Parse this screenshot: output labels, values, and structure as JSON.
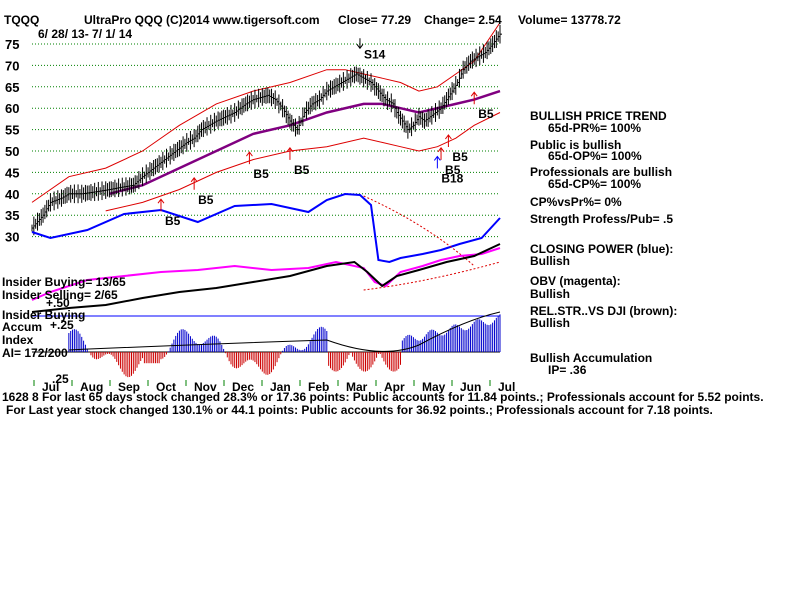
{
  "header": {
    "symbol": "TQQQ",
    "name": "UltraPro QQQ  (C)2014 www.tigersoft.com",
    "close": "Close=  77.29",
    "change": "Change= 2.54",
    "volume": "Volume= 13778.72",
    "date_range": "6/ 28/ 13-  7/ 1/ 14"
  },
  "right_panel": [
    {
      "text": "BULLISH PRICE TREND",
      "indent": false
    },
    {
      "text": "65d-PR%= 100%",
      "indent": true
    },
    {
      "text": "Public is bullish",
      "indent": false
    },
    {
      "text": "65d-OP%= 100%",
      "indent": true
    },
    {
      "text": "Professionals are bullish",
      "indent": false
    },
    {
      "text": "65d-CP%= 100%",
      "indent": true
    },
    {
      "text": "CP%vsPr%=  0%",
      "indent": false
    },
    {
      "text": "Strength Profess/Pub= .5",
      "indent": false
    },
    {
      "text": "CLOSING POWER (blue):",
      "indent": false
    },
    {
      "text": "Bullish",
      "indent": false
    },
    {
      "text": "OBV (magenta):",
      "indent": false
    },
    {
      "text": "Bullish",
      "indent": false
    },
    {
      "text": "REL.STR..VS DJI (brown):",
      "indent": false
    },
    {
      "text": "Bullish",
      "indent": false
    },
    {
      "text": "Bullish Accumulation",
      "indent": false
    },
    {
      "text": "IP=  .36",
      "indent": true
    }
  ],
  "left_labels": {
    "insider_buying": "Insider Buying= 13/65",
    "insider_selling": "Insider Selling= 2/65",
    "acc_top": "+.50",
    "insider_buying2": "Insider Buying",
    "accum": "Accum",
    "acc_mid": "+.25",
    "index": "Index",
    "ai": "AI= 172/200",
    "acc_low": ".25"
  },
  "footer": {
    "line1_prefix": "1628 8",
    "line1": "For last 65 days stock changed  28.3% or  17.36 points:  Public accounts for  11.84 points.;  Professionals account for  5.52 points.",
    "line2": "For Last year stock changed  130.1% or  44.1 points:  Public accounts for  36.92 points.;  Professionals account for  7.18 points."
  },
  "colors": {
    "price": "#000000",
    "bands": "#dd0000",
    "ma": "#800080",
    "closing_power": "#0000ff",
    "obv": "#ff00ff",
    "rel_str": "#000000",
    "accum_pos": "#0000cc",
    "accum_neg": "#cc0000",
    "signal_red": "#dd0000",
    "signal_blue": "#0000ff",
    "grid": "#008000"
  },
  "chart_data": {
    "type": "line",
    "y_ticks": [
      75,
      70,
      65,
      60,
      55,
      50,
      45,
      40,
      35,
      30
    ],
    "ylim": [
      26,
      80
    ],
    "grid": true,
    "months": [
      "Jul",
      "Aug",
      "Sep",
      "Oct",
      "Nov",
      "Dec",
      "Jan",
      "Feb",
      "Mar",
      "Apr",
      "May",
      "Jun",
      "Jul"
    ],
    "price_series": {
      "x": [
        0,
        6,
        10,
        16,
        20,
        27,
        35,
        42,
        48,
        55,
        60,
        66,
        72,
        78,
        84,
        88,
        92,
        96,
        100,
        105,
        110,
        116,
        120,
        124,
        128,
        132,
        136,
        140,
        144,
        148,
        152,
        156,
        160,
        164,
        168,
        172,
        176,
        180,
        184,
        188,
        192,
        196,
        198,
        201,
        204,
        207,
        210,
        213,
        216,
        219,
        222,
        225,
        228,
        231,
        234,
        238,
        242,
        246,
        250,
        254
      ],
      "y": [
        32,
        35,
        38,
        39,
        40,
        40,
        40.5,
        41,
        41.5,
        42,
        44,
        46,
        48,
        50,
        52,
        53,
        55,
        56,
        57,
        58,
        59,
        61,
        62,
        62.5,
        63,
        62,
        60,
        57,
        55,
        59,
        61,
        62,
        64,
        65,
        66,
        67,
        68,
        67,
        66,
        64,
        62,
        61,
        59,
        57,
        55,
        56,
        58,
        57,
        58,
        59,
        60,
        62,
        64,
        66,
        69,
        71,
        72,
        73,
        75,
        77.3
      ]
    },
    "ma_series": {
      "x": [
        42,
        60,
        80,
        100,
        120,
        140,
        160,
        180,
        190,
        200,
        210,
        220,
        230,
        240,
        254
      ],
      "y": [
        40,
        42,
        46,
        50,
        54,
        56,
        59,
        61,
        61,
        60,
        59,
        60,
        61,
        62,
        64
      ]
    },
    "upper_band": {
      "x": [
        0,
        20,
        40,
        60,
        80,
        100,
        120,
        140,
        160,
        170,
        180,
        190,
        200,
        210,
        220,
        230,
        240,
        254
      ],
      "y": [
        38,
        44,
        46,
        50,
        56,
        61,
        64,
        66,
        69,
        69,
        68,
        67,
        66,
        64,
        65,
        68,
        71,
        80
      ]
    },
    "lower_band": {
      "x": [
        40,
        60,
        80,
        100,
        120,
        140,
        160,
        180,
        190,
        200,
        210,
        220,
        230,
        240,
        254
      ],
      "y": [
        36,
        38,
        41,
        45,
        48,
        50,
        51,
        53,
        52,
        51,
        50,
        51,
        53,
        56,
        59
      ]
    },
    "signals": [
      {
        "label": "S14",
        "x": 178,
        "y": 74,
        "color": "black",
        "dir": "down"
      },
      {
        "label": "B5",
        "x": 70,
        "y": 35,
        "color": "red",
        "dir": "up"
      },
      {
        "label": "B5",
        "x": 88,
        "y": 40,
        "color": "red",
        "dir": "up"
      },
      {
        "label": "B5",
        "x": 118,
        "y": 46,
        "color": "red",
        "dir": "up"
      },
      {
        "label": "B5",
        "x": 140,
        "y": 47,
        "color": "red",
        "dir": "up"
      },
      {
        "label": "B5",
        "x": 226,
        "y": 50,
        "color": "red",
        "dir": "up"
      },
      {
        "label": "B5",
        "x": 222,
        "y": 47,
        "color": "red",
        "dir": "up"
      },
      {
        "label": "B18",
        "x": 220,
        "y": 45,
        "color": "blue",
        "dir": "up"
      },
      {
        "label": "B5",
        "x": 240,
        "y": 60,
        "color": "red",
        "dir": "up"
      }
    ]
  }
}
